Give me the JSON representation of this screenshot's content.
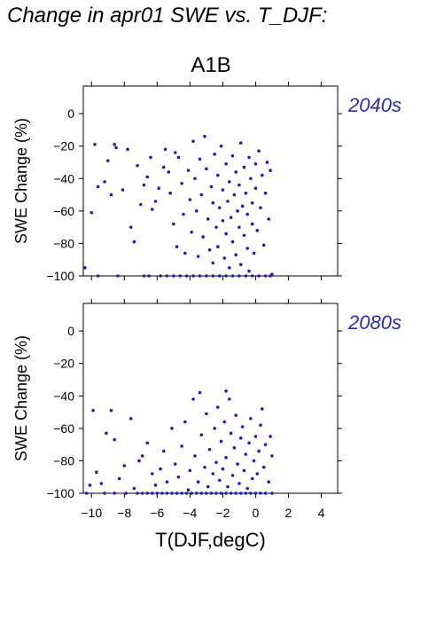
{
  "page": {
    "title": "Change in apr01 SWE vs. T_DJF:",
    "scenario": "A1B"
  },
  "colors": {
    "points": "#1f1fb4",
    "period_label": "#2a2ab8",
    "axis": "#000000"
  },
  "chart_data": [
    {
      "type": "scatter",
      "title": "A1B",
      "period_label": "2040s",
      "xlabel": "",
      "ylabel": "SWE Change (%)",
      "xlim": [
        -10.5,
        5
      ],
      "ylim": [
        -100,
        17
      ],
      "x_ticks": [
        -10,
        -8,
        -6,
        -4,
        -2,
        0,
        2,
        4
      ],
      "x_tick_labels_shown": false,
      "y_ticks": [
        0,
        -20,
        -40,
        -60,
        -80,
        -100
      ],
      "y_tick_labels": [
        "0",
        "−20",
        "−40",
        "−60",
        "−80",
        "−100"
      ],
      "grid": false,
      "points": [
        [
          -10.4,
          -95
        ],
        [
          -10,
          -61
        ],
        [
          -9.8,
          -19
        ],
        [
          -9.6,
          -45
        ],
        [
          -9.2,
          -42
        ],
        [
          -9,
          -29
        ],
        [
          -8.8,
          -50
        ],
        [
          -8.6,
          -19
        ],
        [
          -8.5,
          -21
        ],
        [
          -8.1,
          -47
        ],
        [
          -7.8,
          -22
        ],
        [
          -7.6,
          -70
        ],
        [
          -7.4,
          -79
        ],
        [
          -7.2,
          -32
        ],
        [
          -7,
          -56
        ],
        [
          -6.8,
          -44
        ],
        [
          -6.6,
          -39
        ],
        [
          -6.4,
          -27
        ],
        [
          -6.3,
          -59
        ],
        [
          -6.1,
          -54
        ],
        [
          -5.9,
          -46
        ],
        [
          -5.6,
          -33
        ],
        [
          -5.5,
          -22
        ],
        [
          -5.3,
          -36
        ],
        [
          -5.2,
          -49
        ],
        [
          -5,
          -68
        ],
        [
          -4.9,
          -24
        ],
        [
          -4.8,
          -82
        ],
        [
          -4.7,
          -27
        ],
        [
          -4.5,
          -43
        ],
        [
          -4.4,
          -62
        ],
        [
          -4.3,
          -86
        ],
        [
          -4.1,
          -35
        ],
        [
          -4,
          -53
        ],
        [
          -3.9,
          -73
        ],
        [
          -3.8,
          -17
        ],
        [
          -3.7,
          -40
        ],
        [
          -3.6,
          -60
        ],
        [
          -3.5,
          -88
        ],
        [
          -3.4,
          -28
        ],
        [
          -3.3,
          -50
        ],
        [
          -3.2,
          -76
        ],
        [
          -3.1,
          -14
        ],
        [
          -3,
          -34
        ],
        [
          -2.9,
          -65
        ],
        [
          -2.8,
          -84
        ],
        [
          -2.7,
          -45
        ],
        [
          -2.6,
          -55
        ],
        [
          -2.6,
          -92
        ],
        [
          -2.5,
          -25
        ],
        [
          -2.4,
          -70
        ],
        [
          -2.3,
          -38
        ],
        [
          -2.3,
          -82
        ],
        [
          -2.2,
          -58
        ],
        [
          -2.1,
          -20
        ],
        [
          -2,
          -47
        ],
        [
          -2,
          -66
        ],
        [
          -1.9,
          -89
        ],
        [
          -1.8,
          -31
        ],
        [
          -1.8,
          -74
        ],
        [
          -1.7,
          -54
        ],
        [
          -1.6,
          -42
        ],
        [
          -1.6,
          -95
        ],
        [
          -1.5,
          -64
        ],
        [
          -1.4,
          -26
        ],
        [
          -1.4,
          -79
        ],
        [
          -1.3,
          -50
        ],
        [
          -1.2,
          -36
        ],
        [
          -1.2,
          -87
        ],
        [
          -1.1,
          -60
        ],
        [
          -1,
          -70
        ],
        [
          -1,
          -44
        ],
        [
          -0.9,
          -18
        ],
        [
          -0.9,
          -93
        ],
        [
          -0.8,
          -57
        ],
        [
          -0.7,
          -75
        ],
        [
          -0.7,
          -33
        ],
        [
          -0.6,
          -49
        ],
        [
          -0.5,
          -83
        ],
        [
          -0.5,
          -62
        ],
        [
          -0.4,
          -27
        ],
        [
          -0.4,
          -97
        ],
        [
          -0.3,
          -40
        ],
        [
          -0.2,
          -68
        ],
        [
          -0.2,
          -55
        ],
        [
          -0.1,
          -86
        ],
        [
          0,
          -31
        ],
        [
          0,
          -46
        ],
        [
          0.1,
          -72
        ],
        [
          0.2,
          -23
        ],
        [
          0.3,
          -58
        ],
        [
          0.4,
          -38
        ],
        [
          0.5,
          -81
        ],
        [
          0.6,
          -49
        ],
        [
          0.7,
          -30
        ],
        [
          0.8,
          -65
        ],
        [
          0.9,
          -35
        ],
        [
          1,
          -99
        ],
        [
          -9.6,
          -100
        ],
        [
          -8.4,
          -100
        ],
        [
          -6.8,
          -100
        ],
        [
          -6.5,
          -100
        ],
        [
          -5.8,
          -100
        ],
        [
          -5.4,
          -100
        ],
        [
          -5,
          -100
        ],
        [
          -4.6,
          -100
        ],
        [
          -4.2,
          -100
        ],
        [
          -3.8,
          -100
        ],
        [
          -3.4,
          -100
        ],
        [
          -3,
          -100
        ],
        [
          -2.6,
          -100
        ],
        [
          -2.2,
          -100
        ],
        [
          -1.8,
          -100
        ],
        [
          -1.4,
          -100
        ],
        [
          -1,
          -100
        ],
        [
          -0.6,
          -100
        ],
        [
          -0.2,
          -100
        ],
        [
          0.2,
          -100
        ],
        [
          0.6,
          -100
        ],
        [
          0.9,
          -100
        ]
      ]
    },
    {
      "type": "scatter",
      "period_label": "2080s",
      "xlabel": "T(DJF,degC)",
      "ylabel": "SWE Change (%)",
      "xlim": [
        -10.5,
        5
      ],
      "ylim": [
        -100,
        17
      ],
      "x_ticks": [
        -10,
        -8,
        -6,
        -4,
        -2,
        0,
        2,
        4
      ],
      "x_tick_labels": [
        "−10",
        "−8",
        "−6",
        "−4",
        "−2",
        "0",
        "2",
        "4"
      ],
      "y_ticks": [
        0,
        -20,
        -40,
        -60,
        -80,
        -100
      ],
      "y_tick_labels": [
        "0",
        "−20",
        "−40",
        "−60",
        "−80",
        "−100"
      ],
      "grid": false,
      "points": [
        [
          -10.1,
          -95
        ],
        [
          -9.9,
          -49
        ],
        [
          -9.7,
          -87
        ],
        [
          -9.4,
          -94
        ],
        [
          -9.1,
          -63
        ],
        [
          -8.8,
          -49
        ],
        [
          -8.6,
          -67
        ],
        [
          -8.3,
          -91
        ],
        [
          -8,
          -83
        ],
        [
          -7.6,
          -54
        ],
        [
          -7.4,
          -97
        ],
        [
          -7.1,
          -80
        ],
        [
          -6.9,
          -77
        ],
        [
          -6.6,
          -69
        ],
        [
          -6.3,
          -88
        ],
        [
          -6.1,
          -95
        ],
        [
          -5.8,
          -85
        ],
        [
          -5.6,
          -74
        ],
        [
          -5.4,
          -93
        ],
        [
          -5.1,
          -60
        ],
        [
          -4.9,
          -82
        ],
        [
          -4.7,
          -90
        ],
        [
          -4.5,
          -71
        ],
        [
          -4.3,
          -56
        ],
        [
          -4.1,
          -98
        ],
        [
          -4,
          -86
        ],
        [
          -3.8,
          -42
        ],
        [
          -3.7,
          -77
        ],
        [
          -3.5,
          -93
        ],
        [
          -3.4,
          -38
        ],
        [
          -3.3,
          -64
        ],
        [
          -3.1,
          -84
        ],
        [
          -3,
          -51
        ],
        [
          -2.9,
          -96
        ],
        [
          -2.8,
          -73
        ],
        [
          -2.6,
          -88
        ],
        [
          -2.5,
          -60
        ],
        [
          -2.4,
          -81
        ],
        [
          -2.3,
          -47
        ],
        [
          -2.2,
          -92
        ],
        [
          -2.1,
          -68
        ],
        [
          -2,
          -85
        ],
        [
          -1.9,
          -56
        ],
        [
          -1.8,
          -37
        ],
        [
          -1.8,
          -78
        ],
        [
          -1.7,
          -96
        ],
        [
          -1.6,
          -42
        ],
        [
          -1.5,
          -63
        ],
        [
          -1.4,
          -89
        ],
        [
          -1.3,
          -72
        ],
        [
          -1.2,
          -52
        ],
        [
          -1.1,
          -82
        ],
        [
          -1,
          -94
        ],
        [
          -0.9,
          -66
        ],
        [
          -0.8,
          -59
        ],
        [
          -0.7,
          -86
        ],
        [
          -0.6,
          -76
        ],
        [
          -0.5,
          -97
        ],
        [
          -0.4,
          -69
        ],
        [
          -0.3,
          -54
        ],
        [
          -0.2,
          -91
        ],
        [
          -0.1,
          -80
        ],
        [
          0,
          -65
        ],
        [
          0.1,
          -88
        ],
        [
          0.2,
          -74
        ],
        [
          0.3,
          -58
        ],
        [
          0.5,
          -84
        ],
        [
          0.6,
          -70
        ],
        [
          0.8,
          -93
        ],
        [
          1,
          -77
        ],
        [
          0.4,
          -48
        ],
        [
          0.9,
          -65
        ],
        [
          -10.3,
          -100
        ],
        [
          -9.2,
          -100
        ],
        [
          -8.6,
          -100
        ],
        [
          -7.9,
          -100
        ],
        [
          -7.2,
          -100
        ],
        [
          -6.9,
          -100
        ],
        [
          -6.6,
          -100
        ],
        [
          -6.3,
          -100
        ],
        [
          -6,
          -100
        ],
        [
          -5.7,
          -100
        ],
        [
          -5.4,
          -100
        ],
        [
          -5.1,
          -100
        ],
        [
          -4.8,
          -100
        ],
        [
          -4.5,
          -100
        ],
        [
          -4.2,
          -100
        ],
        [
          -3.9,
          -100
        ],
        [
          -3.6,
          -100
        ],
        [
          -3.3,
          -100
        ],
        [
          -3,
          -100
        ],
        [
          -2.7,
          -100
        ],
        [
          -2.4,
          -100
        ],
        [
          -2.1,
          -100
        ],
        [
          -1.8,
          -100
        ],
        [
          -1.5,
          -100
        ],
        [
          -1.2,
          -100
        ],
        [
          -0.9,
          -100
        ],
        [
          -0.6,
          -100
        ],
        [
          -0.3,
          -100
        ],
        [
          0,
          -100
        ],
        [
          0.3,
          -100
        ],
        [
          0.6,
          -100
        ],
        [
          1,
          -100
        ]
      ]
    }
  ]
}
